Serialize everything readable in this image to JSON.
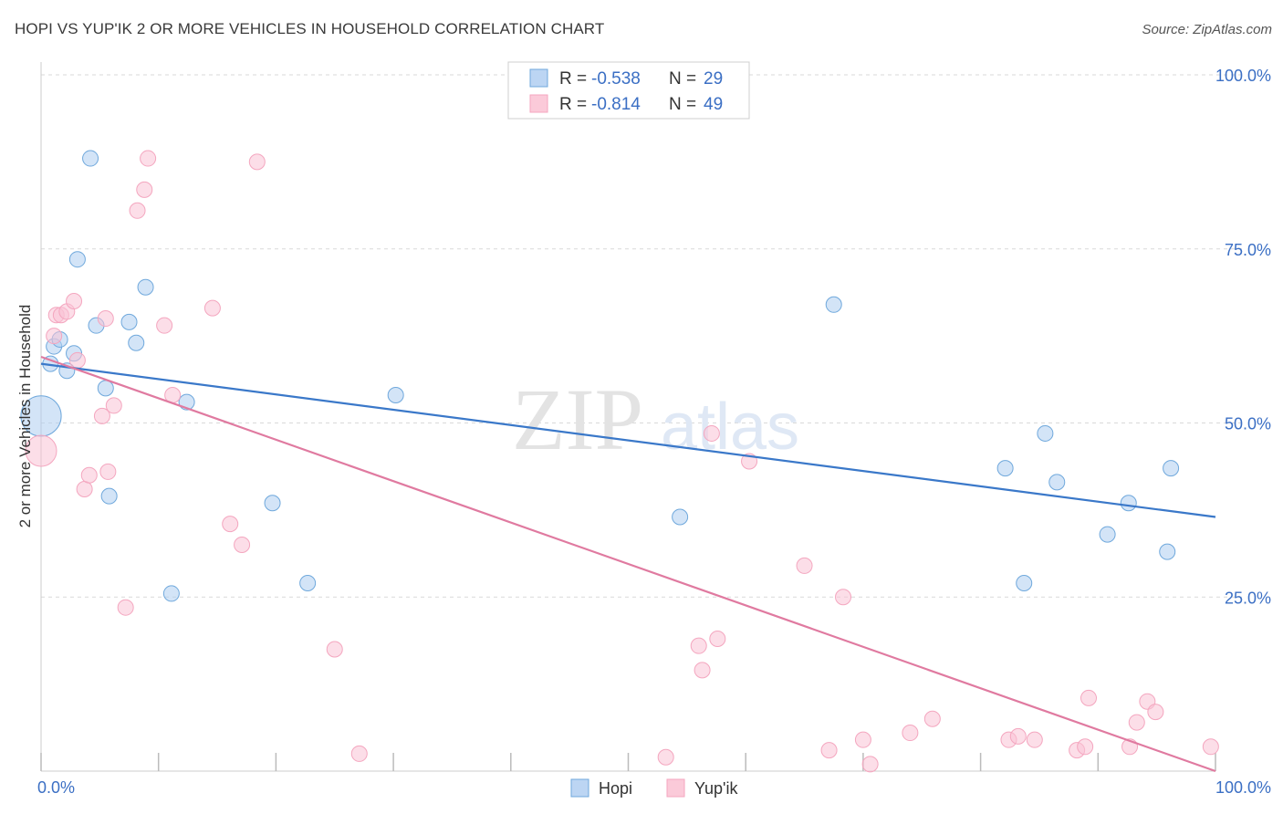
{
  "header": {
    "title": "HOPI VS YUP'IK 2 OR MORE VEHICLES IN HOUSEHOLD CORRELATION CHART",
    "source": "Source: ZipAtlas.com"
  },
  "colors": {
    "hopi": "#6fa8dc",
    "hopi_line": "#3a78c9",
    "yupik": "#f4a6bf",
    "yupik_line": "#e07aa0",
    "axis_text": "#3b6fc4",
    "grid": "#d9d9d9"
  },
  "watermark": {
    "zip": "ZIP",
    "atlas": "atlas"
  },
  "chart_data": {
    "type": "scatter",
    "title": "HOPI VS YUP'IK 2 OR MORE VEHICLES IN HOUSEHOLD CORRELATION CHART",
    "xlabel": "",
    "ylabel": "2 or more Vehicles in Household",
    "xlim": [
      0,
      100
    ],
    "ylim": [
      0,
      100
    ],
    "x_tick_labels": [
      "0.0%",
      "100.0%"
    ],
    "y_ticks": [
      25,
      50,
      75,
      100
    ],
    "y_tick_labels": [
      "25.0%",
      "50.0%",
      "75.0%",
      "100.0%"
    ],
    "legend": [
      {
        "name": "Hopi",
        "r_label": "R =",
        "r": "-0.538",
        "n_label": "N =",
        "n": "29"
      },
      {
        "name": "Yup'ik",
        "r_label": "R =",
        "r": "-0.814",
        "n_label": "N =",
        "n": "49"
      }
    ],
    "series": [
      {
        "name": "Hopi",
        "trend": {
          "x": [
            0,
            100
          ],
          "y": [
            58.5,
            36.5
          ]
        },
        "points": [
          [
            0.0,
            51,
            2.6
          ],
          [
            0.8,
            58.5,
            1
          ],
          [
            1.1,
            61,
            1
          ],
          [
            1.6,
            62,
            1
          ],
          [
            2.2,
            57.5,
            1
          ],
          [
            2.8,
            60,
            1
          ],
          [
            3.1,
            73.5,
            1
          ],
          [
            4.2,
            88,
            1
          ],
          [
            4.7,
            64,
            1
          ],
          [
            5.5,
            55,
            1
          ],
          [
            5.8,
            39.5,
            1
          ],
          [
            7.5,
            64.5,
            1
          ],
          [
            8.1,
            61.5,
            1
          ],
          [
            8.9,
            69.5,
            1
          ],
          [
            11.1,
            25.5,
            1
          ],
          [
            12.4,
            53,
            1
          ],
          [
            19.7,
            38.5,
            1
          ],
          [
            22.7,
            27,
            1
          ],
          [
            30.2,
            54,
            1
          ],
          [
            54.4,
            36.5,
            1
          ],
          [
            67.5,
            67,
            1
          ],
          [
            82.1,
            43.5,
            1
          ],
          [
            83.7,
            27,
            1
          ],
          [
            85.5,
            48.5,
            1
          ],
          [
            86.5,
            41.5,
            1
          ],
          [
            90.8,
            34,
            1
          ],
          [
            92.6,
            38.5,
            1
          ],
          [
            95.9,
            31.5,
            1
          ],
          [
            96.2,
            43.5,
            1
          ]
        ]
      },
      {
        "name": "Yup'ik",
        "trend": {
          "x": [
            0,
            100
          ],
          "y": [
            59.5,
            0
          ]
        },
        "points": [
          [
            0.0,
            46,
            2.0
          ],
          [
            1.1,
            62.5,
            1
          ],
          [
            1.3,
            65.5,
            1
          ],
          [
            1.7,
            65.5,
            1
          ],
          [
            2.2,
            66,
            1
          ],
          [
            2.8,
            67.5,
            1
          ],
          [
            3.1,
            59,
            1
          ],
          [
            3.7,
            40.5,
            1
          ],
          [
            4.1,
            42.5,
            1
          ],
          [
            5.2,
            51,
            1
          ],
          [
            5.5,
            65,
            1
          ],
          [
            5.7,
            43,
            1
          ],
          [
            6.2,
            52.5,
            1
          ],
          [
            7.2,
            23.5,
            1
          ],
          [
            8.2,
            80.5,
            1
          ],
          [
            8.8,
            83.5,
            1
          ],
          [
            9.1,
            88,
            1
          ],
          [
            10.5,
            64,
            1
          ],
          [
            11.2,
            54,
            1
          ],
          [
            14.6,
            66.5,
            1
          ],
          [
            16.1,
            35.5,
            1
          ],
          [
            17.1,
            32.5,
            1
          ],
          [
            18.4,
            87.5,
            1
          ],
          [
            25.0,
            17.5,
            1
          ],
          [
            27.1,
            2.5,
            1
          ],
          [
            53.2,
            2,
            1
          ],
          [
            56.0,
            18,
            1
          ],
          [
            56.3,
            14.5,
            1
          ],
          [
            57.1,
            48.5,
            1
          ],
          [
            57.6,
            19,
            1
          ],
          [
            60.3,
            44.5,
            1
          ],
          [
            65.0,
            29.5,
            1
          ],
          [
            67.1,
            3,
            1
          ],
          [
            68.3,
            25,
            1
          ],
          [
            70.0,
            4.5,
            1
          ],
          [
            70.6,
            1,
            1
          ],
          [
            74.0,
            5.5,
            1
          ],
          [
            75.9,
            7.5,
            1
          ],
          [
            82.4,
            4.5,
            1
          ],
          [
            83.2,
            5,
            1
          ],
          [
            84.6,
            4.5,
            1
          ],
          [
            88.2,
            3,
            1
          ],
          [
            88.9,
            3.5,
            1
          ],
          [
            89.2,
            10.5,
            1
          ],
          [
            92.7,
            3.5,
            1
          ],
          [
            93.3,
            7,
            1
          ],
          [
            94.2,
            10,
            1
          ],
          [
            94.9,
            8.5,
            1
          ],
          [
            99.6,
            3.5,
            1
          ]
        ]
      }
    ]
  }
}
